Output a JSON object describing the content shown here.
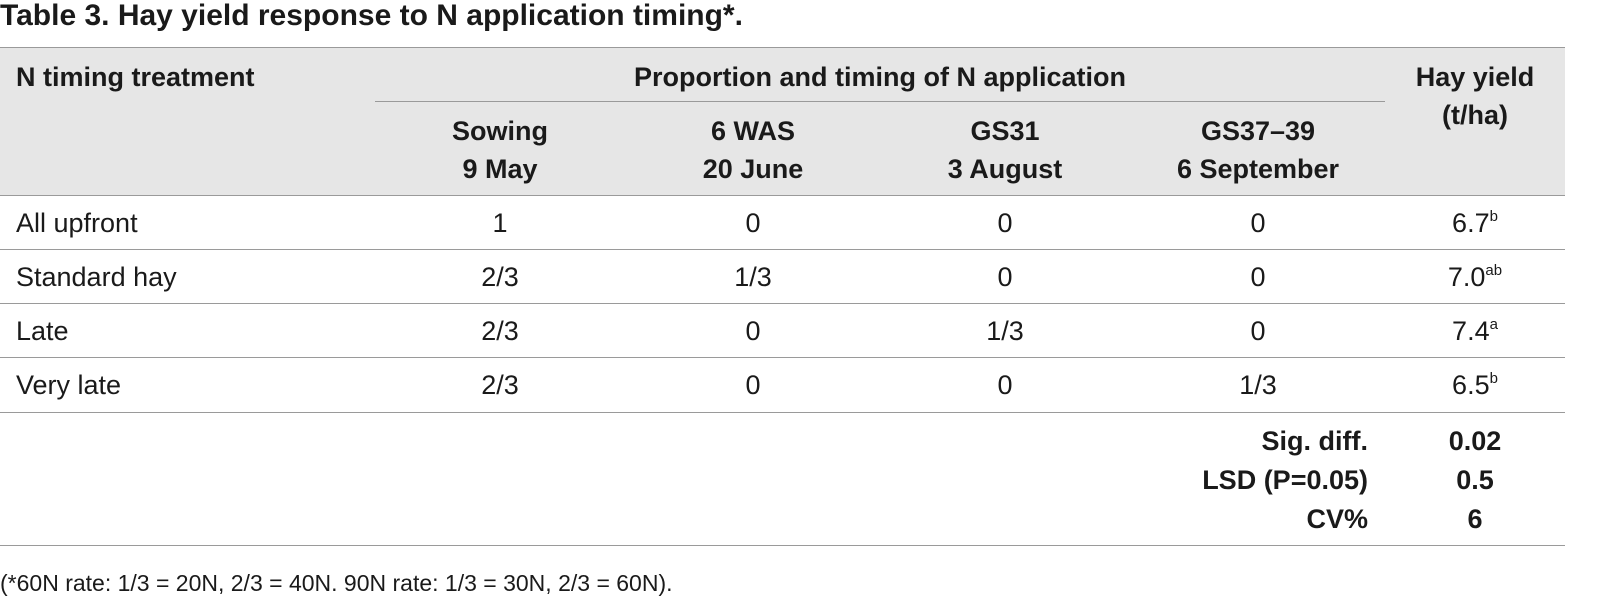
{
  "title": "Table 3. Hay yield response to N application timing*.",
  "table": {
    "header": {
      "treatment": "N timing treatment",
      "group": "Proportion and timing of N application",
      "yield": [
        "Hay yield",
        "(t/ha)"
      ],
      "columns": [
        [
          "Sowing",
          "9 May"
        ],
        [
          "6 WAS",
          "20 June"
        ],
        [
          "GS31",
          "3 August"
        ],
        [
          "GS37–39",
          "6 September"
        ]
      ]
    },
    "rows": [
      [
        "All upfront",
        "1",
        "0",
        "0",
        "0",
        "6.7",
        "b"
      ],
      [
        "Standard hay",
        "2/3",
        "1/3",
        "0",
        "0",
        "7.0",
        "ab"
      ],
      [
        "Late",
        "2/3",
        "0",
        "1/3",
        "0",
        "7.4",
        "a"
      ],
      [
        "Very late",
        "2/3",
        "0",
        "0",
        "1/3",
        "6.5",
        "b"
      ]
    ],
    "stats": [
      [
        "Sig. diff.",
        "0.02"
      ],
      [
        "LSD (P=0.05)",
        "0.5"
      ],
      [
        "CV%",
        "6"
      ]
    ]
  },
  "footnote": "(*60N rate: 1/3 = 20N, 2/3 = 40N. 90N rate: 1/3 = 30N, 2/3 = 60N)."
}
